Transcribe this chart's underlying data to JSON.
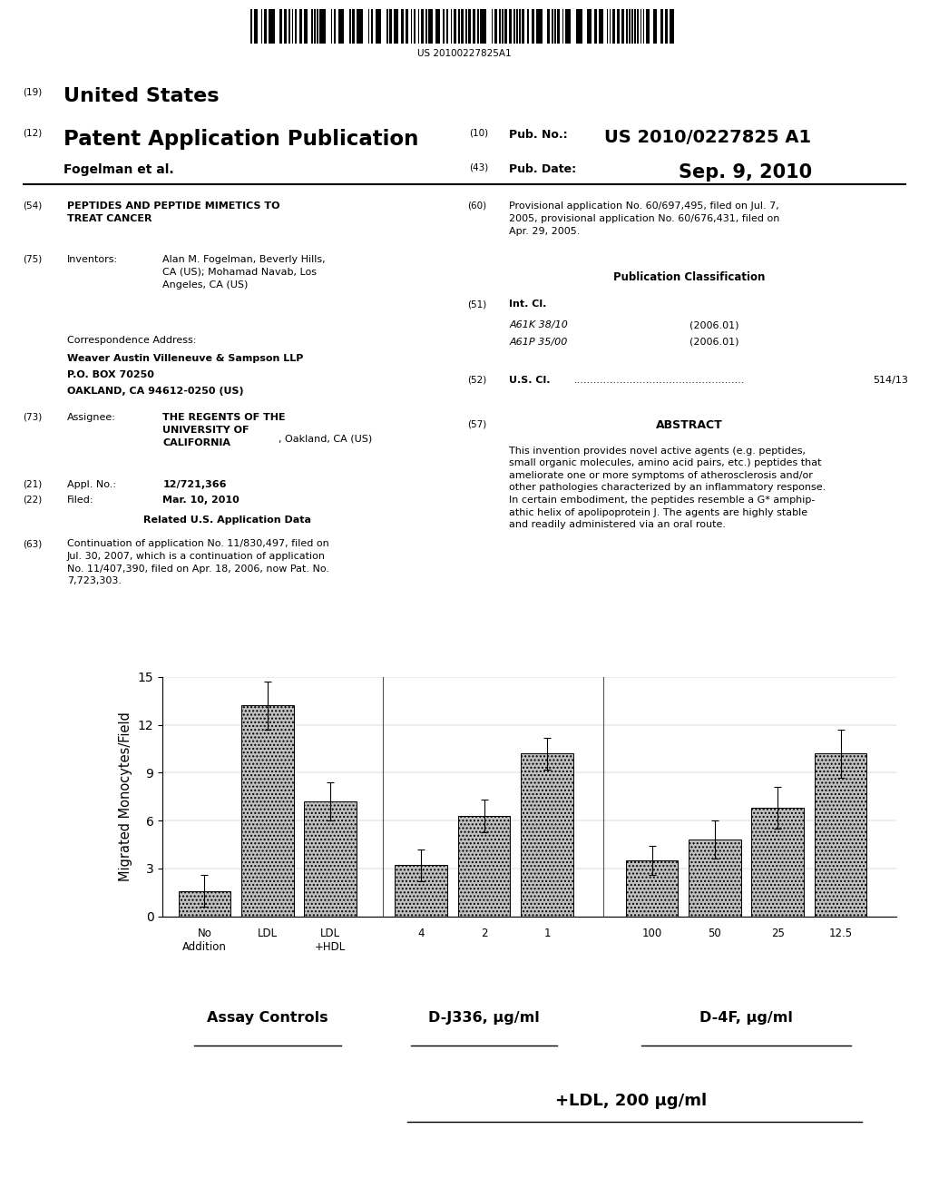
{
  "bar_values": [
    1.6,
    13.2,
    7.2,
    3.2,
    6.3,
    10.2,
    3.5,
    4.8,
    6.8,
    10.2
  ],
  "bar_errors": [
    1.0,
    1.5,
    1.2,
    1.0,
    1.0,
    1.0,
    0.9,
    1.2,
    1.3,
    1.5
  ],
  "bar_labels": [
    "No\nAddition",
    "LDL",
    "LDL\n+HDL",
    "4",
    "2",
    "1",
    "100",
    "50",
    "25",
    "12.5"
  ],
  "group_labels": [
    "Assay Controls",
    "D-J336, μg/ml",
    "D-4F, μg/ml"
  ],
  "ylabel": "Migrated Monocytes/Field",
  "ylim": [
    0,
    15
  ],
  "yticks": [
    0,
    3,
    6,
    9,
    12,
    15
  ],
  "bg_color": "#ffffff",
  "bottom_label": "+LDL, 200 μg/ml",
  "patent_number": "US 20100227825A1",
  "pub_date": "Sep. 9, 2010"
}
